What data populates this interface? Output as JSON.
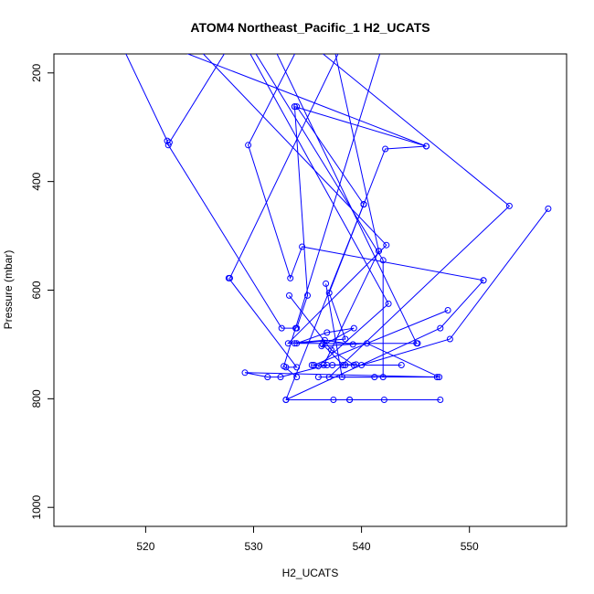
{
  "chart_data": {
    "type": "line",
    "title": "ATOM4 Northeast_Pacific_1 H2_UCATS",
    "xlabel": "H2_UCATS",
    "ylabel": "Pressure (mbar)",
    "xlim": [
      511.5,
      559
    ],
    "ylim": [
      1035,
      165
    ],
    "y_reversed": true,
    "grid": false,
    "legend": "none",
    "color": "#0000ff",
    "x_ticks": [
      520,
      530,
      540,
      550
    ],
    "y_ticks": [
      200,
      400,
      600,
      800,
      1000
    ],
    "series": [
      {
        "x": [
          518.0,
          522.0,
          522.1,
          532.6,
          533.9
        ],
        "y": [
          158,
          325,
          333,
          670,
          670
        ]
      },
      {
        "x": [
          527.5,
          522.2
        ],
        "y": [
          158,
          328
        ]
      },
      {
        "x": [
          523.0,
          546.0,
          542.2,
          537.0,
          538.5,
          534.0,
          536.8,
          539.3,
          536.3,
          540.5,
          547.2,
          529.2,
          531.3,
          532.5,
          536.8,
          539.5
        ],
        "y": [
          158,
          335,
          340,
          605,
          690,
          698,
          678,
          670,
          703,
          698,
          760,
          752,
          760,
          760,
          738,
          737
        ]
      },
      {
        "x": [
          530.0,
          542.0,
          542.0
        ],
        "y": [
          158,
          545,
          760
        ]
      },
      {
        "x": [
          529.5,
          542.5,
          536.0
        ],
        "y": [
          158,
          625,
          740
        ]
      },
      {
        "x": [
          527.7,
          534.0,
          533.0
        ],
        "y": [
          578,
          742,
          742
        ]
      },
      {
        "x": [
          538.0,
          527.8
        ],
        "y": [
          158,
          578
        ]
      },
      {
        "x": [
          534.0,
          529.5,
          533.4,
          534.5,
          551.3
        ],
        "y": [
          158,
          333,
          578,
          520,
          582
        ]
      },
      {
        "x": [
          536.0,
          553.7,
          537.0
        ],
        "y": [
          158,
          445,
          760
        ]
      },
      {
        "x": [
          533.8,
          535.0,
          534.0
        ],
        "y": [
          262,
          610,
          670
        ]
      },
      {
        "x": [
          533.8,
          546.0
        ],
        "y": [
          262,
          335
        ]
      },
      {
        "x": [
          534.0,
          540.2,
          540.2
        ],
        "y": [
          262,
          442,
          442
        ]
      },
      {
        "x": [
          540.2,
          533.0
        ],
        "y": [
          442,
          802
        ]
      },
      {
        "x": [
          525.0,
          542.3,
          533.2,
          536.6,
          539.2
        ],
        "y": [
          158,
          517,
          698,
          692,
          700
        ]
      },
      {
        "x": [
          537.5,
          541.6
        ],
        "y": [
          158,
          528
        ]
      },
      {
        "x": [
          541.6,
          536.5
        ],
        "y": [
          528,
          738
        ]
      },
      {
        "x": [
          541.8,
          532.8,
          534.0
        ],
        "y": [
          158,
          740,
          760
        ]
      },
      {
        "x": [
          551.3,
          547.3,
          533.0,
          542.1
        ],
        "y": [
          582,
          670,
          802,
          802
        ]
      },
      {
        "x": [
          548.0,
          535.6,
          537.3
        ],
        "y": [
          637,
          738,
          738
        ]
      },
      {
        "x": [
          557.3,
          548.2,
          540.0
        ],
        "y": [
          450,
          690,
          738
        ]
      },
      {
        "x": [
          536.7,
          538.2,
          541.2
        ],
        "y": [
          588,
          760,
          760
        ]
      },
      {
        "x": [
          532.0,
          545.1
        ],
        "y": [
          158,
          698
        ]
      },
      {
        "x": [
          533.8,
          545.2
        ],
        "y": [
          698,
          698
        ]
      },
      {
        "x": [
          535.4,
          543.7,
          538.5
        ],
        "y": [
          738,
          738,
          738
        ]
      },
      {
        "x": [
          533.3,
          537.2,
          539.3
        ],
        "y": [
          610,
          710,
          738
        ]
      },
      {
        "x": [
          537.4,
          547.3
        ],
        "y": [
          802,
          802
        ]
      },
      {
        "x": [
          538.9,
          538.9
        ],
        "y": [
          802,
          802
        ]
      },
      {
        "x": [
          536.0,
          547.0
        ],
        "y": [
          760,
          760
        ]
      },
      {
        "x": [
          538.3,
          536.4
        ],
        "y": [
          738,
          700
        ]
      }
    ]
  }
}
